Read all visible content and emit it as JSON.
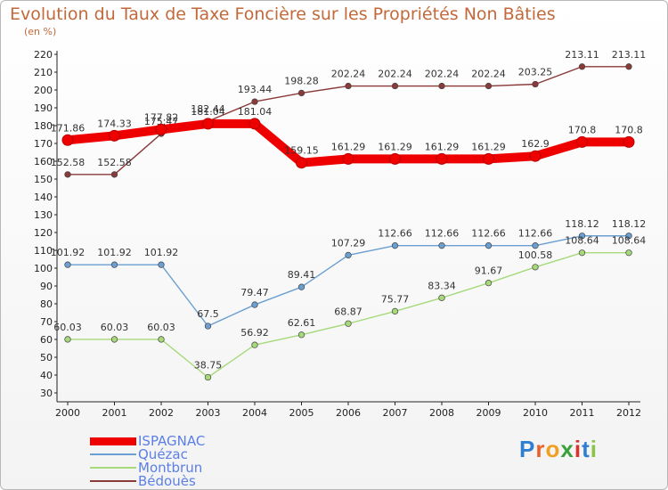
{
  "title": "Evolution du Taux de Taxe Foncière sur les Propriétés Non Bâties",
  "subtitle": "(en %)",
  "brand": {
    "text": "Proxiti",
    "letters": [
      "P",
      "r",
      "o",
      "x",
      "i",
      "t",
      "i"
    ],
    "colors": [
      "#2f7fd0",
      "#e8632a",
      "#f0a020",
      "#3aa03a",
      "#d93030",
      "#2f7fd0",
      "#8bc34a"
    ]
  },
  "chart_data": {
    "type": "line",
    "title": "Evolution du Taux de Taxe Foncière sur les Propriétés Non Bâties",
    "ylabel": "(en %)",
    "xlabel": "",
    "ylim": [
      30,
      220
    ],
    "ytick_step": 10,
    "grid": false,
    "categories": [
      "2000",
      "2001",
      "2002",
      "2003",
      "2004",
      "2005",
      "2006",
      "2007",
      "2008",
      "2009",
      "2010",
      "2011",
      "2012"
    ],
    "series": [
      {
        "name": "ISPAGNAC",
        "color": "#ee0000",
        "thick": true,
        "values": [
          171.86,
          174.33,
          177.82,
          181.04,
          181.04,
          159.15,
          161.29,
          161.29,
          161.29,
          161.29,
          162.9,
          170.8,
          170.8
        ],
        "labels": [
          "171.86",
          "174.33",
          "177.82",
          "181.04",
          "181.04",
          "159.15",
          "161.29",
          "161.29",
          "161.29",
          "161.29",
          "162.9",
          "170.8",
          "170.8"
        ]
      },
      {
        "name": "Quézac",
        "color": "#6b9fd1",
        "thick": false,
        "values": [
          101.92,
          101.92,
          101.92,
          67.5,
          79.47,
          89.41,
          107.29,
          112.66,
          112.66,
          112.66,
          112.66,
          118.12,
          118.12
        ],
        "labels": [
          "101.92",
          "101.92",
          "101.92",
          "67.5",
          "79.47",
          "89.41",
          "107.29",
          "112.66",
          "112.66",
          "112.66",
          "112.66",
          "118.12",
          "118.12"
        ]
      },
      {
        "name": "Montbrun",
        "color": "#a6d97a",
        "thick": false,
        "values": [
          60.03,
          60.03,
          60.03,
          38.75,
          56.92,
          62.61,
          68.87,
          75.77,
          83.34,
          91.67,
          100.58,
          108.64,
          108.64
        ],
        "labels": [
          "60.03",
          "60.03",
          "60.03",
          "38.75",
          "56.92",
          "62.61",
          "68.87",
          "75.77",
          "83.34",
          "91.67",
          "100.58",
          "108.64",
          "108.64"
        ]
      },
      {
        "name": "Bédouès",
        "color": "#8b3a3a",
        "thick": false,
        "values": [
          152.58,
          152.58,
          175.47,
          182.44,
          193.44,
          198.28,
          202.24,
          202.24,
          202.24,
          202.24,
          203.25,
          213.11,
          213.11
        ],
        "labels": [
          "152.58",
          "152.58",
          "175.47",
          "182.44",
          "193.44",
          "198.28",
          "202.24",
          "202.24",
          "202.24",
          "202.24",
          "203.25",
          "213.11",
          "213.11"
        ]
      }
    ]
  }
}
